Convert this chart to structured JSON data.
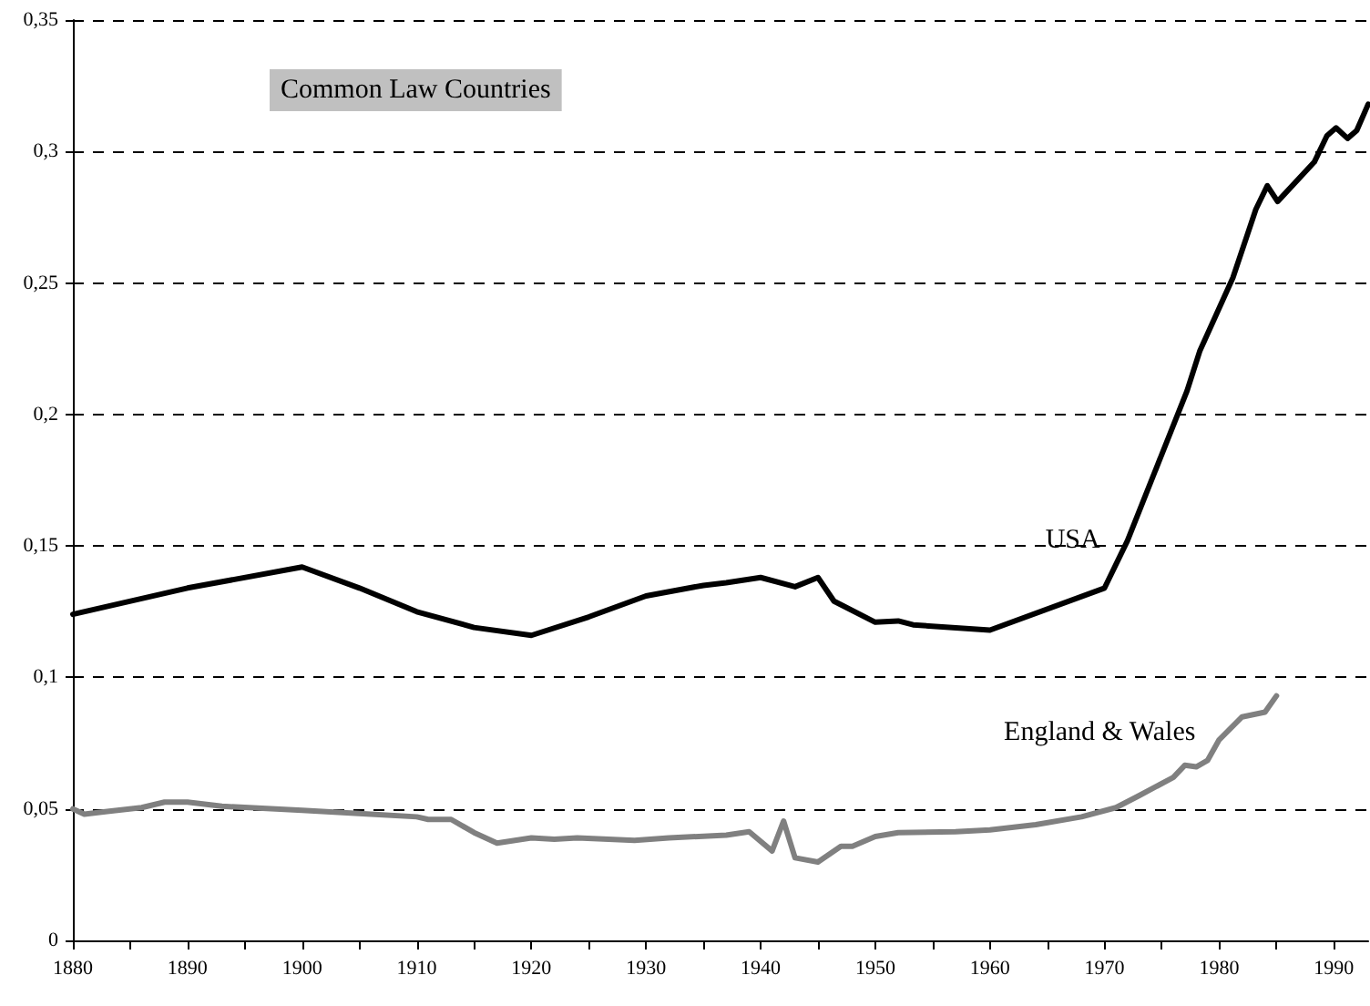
{
  "chart_data": {
    "type": "line",
    "title": "Common Law Countries",
    "xlim": [
      1880,
      1993
    ],
    "xticks": [
      1880,
      {
        "value": 1885,
        "label": null
      },
      1890,
      {
        "value": 1895,
        "label": null
      },
      1900,
      {
        "value": 1905,
        "label": null
      },
      1910,
      {
        "value": 1915,
        "label": null
      },
      1920,
      {
        "value": 1925,
        "label": null
      },
      1930,
      {
        "value": 1935,
        "label": null
      },
      1940,
      {
        "value": 1945,
        "label": null
      },
      1950,
      {
        "value": 1955,
        "label": null
      },
      1960,
      {
        "value": 1965,
        "label": null
      },
      1970,
      {
        "value": 1975,
        "label": null
      },
      1980,
      {
        "value": 1985,
        "label": null
      },
      1990
    ],
    "ylim": [
      0,
      0.35
    ],
    "yticks": [
      0,
      {
        "value": 0.05,
        "label": "0,05"
      },
      {
        "value": 0.1,
        "label": "0,1"
      },
      {
        "value": 0.15,
        "label": "0,15"
      },
      {
        "value": 0.2,
        "label": "0,2"
      },
      {
        "value": 0.25,
        "label": "0,25"
      },
      {
        "value": 0.3,
        "label": "0,3"
      },
      {
        "value": 0.35,
        "label": "0,35"
      }
    ],
    "grid": "y",
    "legend": false,
    "marker": "none",
    "line_style": "solid",
    "series": [
      {
        "name": "USA",
        "color": "#000000",
        "x": [
          1880,
          1890,
          1900,
          1905,
          1910,
          1915,
          1920,
          1925,
          1930,
          1935,
          1937,
          1940,
          1943,
          1945,
          1946.4,
          1950,
          1952,
          1953.3,
          1960,
          1970,
          1972,
          1977.2,
          1978.3,
          1981.2,
          1983.2,
          1984.2,
          1985.1,
          1988.3,
          1989.4,
          1990.2,
          1991.2,
          1992,
          1993
        ],
        "values": [
          0.124,
          0.134,
          0.142,
          0.134,
          0.125,
          0.119,
          0.116,
          0.123,
          0.131,
          0.135,
          0.136,
          0.138,
          0.1345,
          0.138,
          0.129,
          0.121,
          0.1215,
          0.12,
          0.118,
          0.134,
          0.152,
          0.209,
          0.224,
          0.252,
          0.278,
          0.287,
          0.281,
          0.296,
          0.306,
          0.309,
          0.305,
          0.308,
          0.318
        ]
      },
      {
        "name": "England & Wales",
        "color": "#808080",
        "x": [
          1880,
          1881,
          1883,
          1886,
          1888,
          1890,
          1893,
          1900,
          1906,
          1910,
          1911,
          1913,
          1915,
          1917,
          1920,
          1922,
          1924,
          1929,
          1932,
          1937,
          1939,
          1941,
          1942,
          1943,
          1945,
          1947,
          1948,
          1950,
          1952,
          1957,
          1960,
          1964,
          1968,
          1971,
          1973,
          1976,
          1977,
          1978,
          1979,
          1980,
          1982,
          1984,
          1985
        ],
        "values": [
          0.05,
          0.048,
          0.049,
          0.0505,
          0.0526,
          0.0526,
          0.051,
          0.0495,
          0.048,
          0.047,
          0.046,
          0.046,
          0.041,
          0.037,
          0.039,
          0.0385,
          0.039,
          0.038,
          0.039,
          0.04,
          0.0413,
          0.034,
          0.0454,
          0.0314,
          0.0298,
          0.0358,
          0.0358,
          0.0395,
          0.041,
          0.0413,
          0.042,
          0.044,
          0.047,
          0.0505,
          0.055,
          0.062,
          0.0666,
          0.066,
          0.0685,
          0.0763,
          0.085,
          0.0868,
          0.093
        ]
      }
    ]
  }
}
